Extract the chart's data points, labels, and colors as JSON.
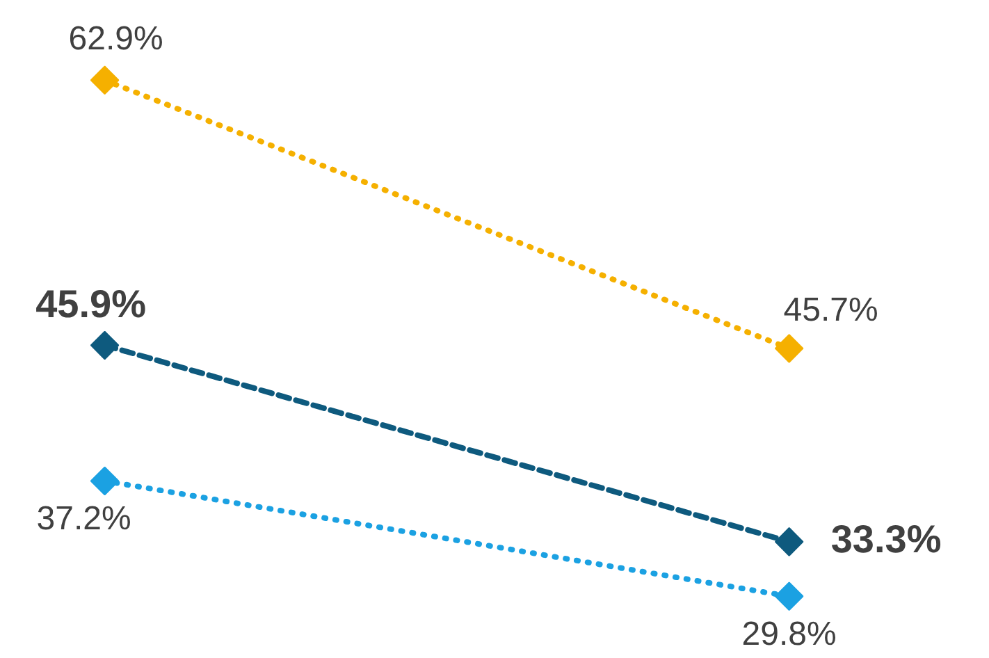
{
  "chart_data": {
    "type": "line",
    "categories": [
      null,
      null
    ],
    "marker": "diamond",
    "data_labels": true,
    "grid": false,
    "tick_labels": false,
    "series": [
      {
        "color": "#f5b000",
        "values": [
          62.9,
          45.7
        ],
        "value_labels": [
          "62.9%",
          "45.7%"
        ],
        "line_style": "dotted"
      },
      {
        "color": "#0e5a7e",
        "values": [
          45.9,
          33.3
        ],
        "value_labels": [
          "45.9%",
          "33.3%"
        ],
        "line_style": "dashed"
      },
      {
        "color": "#1ba1e2",
        "values": [
          37.2,
          29.8
        ],
        "value_labels": [
          "37.2%",
          "29.8%"
        ],
        "line_style": "dotted"
      }
    ]
  }
}
